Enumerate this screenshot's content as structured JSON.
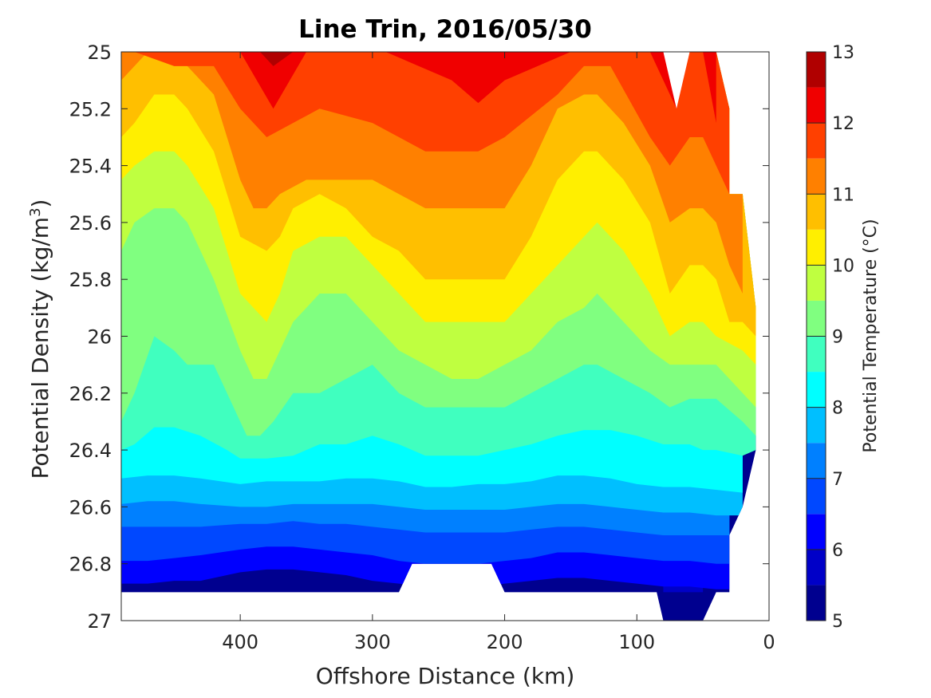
{
  "chart_data": {
    "type": "contour",
    "title": "Line Trin, 2016/05/30",
    "xlabel": "Offshore Distance (km)",
    "ylabel": "Potential Density (kg/m",
    "ylabel_sup": "3",
    "ylabel_close": ")",
    "colorbar_label": "Potential Temperature (°C)",
    "xlim": [
      490,
      0
    ],
    "ylim": [
      25,
      27
    ],
    "y_reversed": true,
    "xticks": [
      400,
      300,
      200,
      100,
      0
    ],
    "xtick_labels": [
      "400",
      "300",
      "200",
      "100",
      "0"
    ],
    "yticks": [
      25,
      25.2,
      25.4,
      25.6,
      25.8,
      26,
      26.2,
      26.4,
      26.6,
      26.8,
      27
    ],
    "ytick_labels": [
      "25",
      "25.2",
      "25.4",
      "25.6",
      "25.8",
      "26",
      "26.2",
      "26.4",
      "26.6",
      "26.8",
      "27"
    ],
    "clim": [
      5,
      13
    ],
    "contour_interval": 0.5,
    "cbar_ticks": [
      5,
      6,
      7,
      8,
      9,
      10,
      11,
      12,
      13
    ],
    "cbar_tick_labels": [
      "5",
      "6",
      "7",
      "8",
      "9",
      "10",
      "11",
      "12",
      "13"
    ],
    "level_colors": [
      "#00008f",
      "#0000c8",
      "#0000ff",
      "#0048ff",
      "#0080ff",
      "#00bfff",
      "#00ffff",
      "#40ffbf",
      "#80ff80",
      "#bfff40",
      "#ffef00",
      "#ffbf00",
      "#ff8000",
      "#ff4000",
      "#f00000",
      "#b00000"
    ],
    "isotherms": [
      {
        "level": 12.5,
        "x": [
          385,
          375,
          360
        ],
        "y": [
          25.0,
          25.05,
          25.0
        ]
      },
      {
        "level": 12.0,
        "x": [
          400,
          375,
          350,
          290,
          240,
          220,
          200,
          150,
          120,
          100,
          90,
          80,
          70,
          60,
          50,
          40
        ],
        "y": [
          25.0,
          25.2,
          25.0,
          25.0,
          25.1,
          25.18,
          25.1,
          25.0,
          25.0,
          25.0,
          25.0,
          25.1,
          25.2,
          25.0,
          25.0,
          25.25
        ]
      },
      {
        "level": 11.5,
        "x": [
          480,
          450,
          420,
          400,
          380,
          360,
          340,
          300,
          260,
          240,
          220,
          200,
          160,
          140,
          120,
          90,
          75,
          60,
          50,
          30
        ],
        "y": [
          25.0,
          25.05,
          25.05,
          25.2,
          25.3,
          25.25,
          25.2,
          25.25,
          25.35,
          25.35,
          25.35,
          25.3,
          25.15,
          25.05,
          25.05,
          25.3,
          25.4,
          25.3,
          25.3,
          25.5
        ]
      },
      {
        "level": 11.0,
        "x": [
          490,
          470,
          460,
          440,
          420,
          400,
          390,
          380,
          370,
          350,
          320,
          300,
          280,
          260,
          240,
          220,
          200,
          180,
          160,
          140,
          130,
          110,
          90,
          75,
          60,
          50,
          40,
          30,
          20
        ],
        "y": [
          25.1,
          25.0,
          25.0,
          25.05,
          25.15,
          25.45,
          25.55,
          25.55,
          25.5,
          25.45,
          25.45,
          25.45,
          25.5,
          25.55,
          25.55,
          25.55,
          25.55,
          25.4,
          25.2,
          25.15,
          25.15,
          25.25,
          25.4,
          25.6,
          25.55,
          25.55,
          25.6,
          25.75,
          25.85
        ]
      },
      {
        "level": 10.5,
        "x": [
          490,
          480,
          465,
          450,
          440,
          420,
          400,
          380,
          370,
          360,
          340,
          320,
          300,
          280,
          260,
          240,
          220,
          200,
          180,
          160,
          140,
          130,
          110,
          90,
          75,
          60,
          50,
          40,
          30,
          20,
          10
        ],
        "y": [
          25.3,
          25.25,
          25.15,
          25.15,
          25.2,
          25.35,
          25.65,
          25.7,
          25.65,
          25.55,
          25.5,
          25.55,
          25.65,
          25.7,
          25.8,
          25.8,
          25.8,
          25.8,
          25.65,
          25.45,
          25.35,
          25.35,
          25.45,
          25.6,
          25.85,
          25.75,
          25.75,
          25.8,
          25.95,
          25.95,
          26.0
        ]
      },
      {
        "level": 10.0,
        "x": [
          490,
          480,
          465,
          450,
          440,
          420,
          400,
          380,
          370,
          360,
          340,
          320,
          300,
          280,
          260,
          240,
          220,
          200,
          180,
          160,
          140,
          130,
          110,
          90,
          75,
          60,
          50,
          40,
          20,
          10
        ],
        "y": [
          25.45,
          25.4,
          25.35,
          25.35,
          25.4,
          25.55,
          25.85,
          25.95,
          25.85,
          25.7,
          25.65,
          25.65,
          25.75,
          25.85,
          25.95,
          25.95,
          25.95,
          25.95,
          25.85,
          25.75,
          25.65,
          25.6,
          25.7,
          25.85,
          26.0,
          25.95,
          25.95,
          26.0,
          26.05,
          26.1
        ]
      },
      {
        "level": 9.5,
        "x": [
          490,
          480,
          465,
          450,
          440,
          420,
          400,
          390,
          380,
          370,
          360,
          340,
          320,
          300,
          280,
          260,
          240,
          220,
          200,
          180,
          160,
          140,
          130,
          110,
          90,
          75,
          60,
          50,
          40,
          20,
          10
        ],
        "y": [
          25.7,
          25.6,
          25.55,
          25.55,
          25.6,
          25.8,
          26.05,
          26.15,
          26.15,
          26.05,
          25.95,
          25.85,
          25.85,
          25.95,
          26.05,
          26.1,
          26.15,
          26.15,
          26.1,
          26.05,
          25.95,
          25.9,
          25.85,
          25.95,
          26.05,
          26.1,
          26.1,
          26.1,
          26.1,
          26.2,
          26.25
        ]
      },
      {
        "level": 9.0,
        "x": [
          490,
          480,
          465,
          450,
          440,
          420,
          400,
          395,
          385,
          375,
          360,
          340,
          320,
          300,
          280,
          260,
          240,
          220,
          200,
          180,
          160,
          140,
          130,
          110,
          90,
          75,
          60,
          50,
          40,
          20,
          10
        ],
        "y": [
          26.3,
          26.2,
          26.0,
          26.05,
          26.1,
          26.1,
          26.3,
          26.35,
          26.35,
          26.3,
          26.2,
          26.2,
          26.15,
          26.1,
          26.2,
          26.25,
          26.25,
          26.25,
          26.25,
          26.2,
          26.15,
          26.1,
          26.1,
          26.15,
          26.2,
          26.25,
          26.22,
          26.22,
          26.22,
          26.3,
          26.35
        ]
      },
      {
        "level": 8.5,
        "x": [
          490,
          480,
          465,
          450,
          430,
          410,
          400,
          380,
          360,
          340,
          320,
          300,
          280,
          260,
          240,
          220,
          200,
          180,
          160,
          140,
          120,
          100,
          80,
          60,
          50,
          40,
          20,
          10
        ],
        "y": [
          26.4,
          26.38,
          26.32,
          26.32,
          26.35,
          26.4,
          26.43,
          26.43,
          26.42,
          26.38,
          26.38,
          26.35,
          26.38,
          26.42,
          26.42,
          26.42,
          26.4,
          26.38,
          26.35,
          26.33,
          26.33,
          26.35,
          26.38,
          26.38,
          26.4,
          26.4,
          26.42,
          26.4
        ]
      },
      {
        "level": 8.0,
        "x": [
          490,
          470,
          450,
          430,
          400,
          380,
          360,
          340,
          320,
          300,
          280,
          260,
          240,
          220,
          200,
          180,
          160,
          140,
          120,
          100,
          80,
          60,
          40,
          20
        ],
        "y": [
          26.5,
          26.49,
          26.49,
          26.5,
          26.52,
          26.51,
          26.51,
          26.51,
          26.5,
          26.5,
          26.51,
          26.53,
          26.53,
          26.52,
          26.52,
          26.51,
          26.49,
          26.49,
          26.5,
          26.52,
          26.53,
          26.53,
          26.54,
          26.55
        ]
      },
      {
        "level": 7.5,
        "x": [
          490,
          470,
          450,
          430,
          400,
          380,
          360,
          340,
          320,
          300,
          280,
          260,
          240,
          220,
          200,
          180,
          160,
          140,
          120,
          100,
          80,
          60,
          40,
          20
        ],
        "y": [
          26.59,
          26.58,
          26.58,
          26.59,
          26.6,
          26.6,
          26.59,
          26.59,
          26.59,
          26.59,
          26.6,
          26.61,
          26.61,
          26.61,
          26.61,
          26.6,
          26.59,
          26.59,
          26.6,
          26.61,
          26.62,
          26.62,
          26.63,
          26.63
        ]
      },
      {
        "level": 7.0,
        "x": [
          490,
          470,
          450,
          430,
          400,
          380,
          360,
          340,
          320,
          300,
          280,
          260,
          240,
          220,
          200,
          180,
          160,
          140,
          120,
          100,
          80,
          60,
          40,
          30
        ],
        "y": [
          26.67,
          26.67,
          26.67,
          26.67,
          26.66,
          26.66,
          26.65,
          26.66,
          26.66,
          26.67,
          26.68,
          26.69,
          26.69,
          26.69,
          26.69,
          26.68,
          26.67,
          26.67,
          26.68,
          26.69,
          26.7,
          26.7,
          26.7,
          26.7
        ]
      },
      {
        "level": 6.5,
        "x": [
          490,
          470,
          450,
          430,
          400,
          380,
          360,
          340,
          320,
          300,
          280,
          260,
          240,
          220,
          200,
          180,
          160,
          140,
          120,
          100,
          80,
          60,
          40,
          30
        ],
        "y": [
          26.79,
          26.79,
          26.78,
          26.77,
          26.75,
          26.74,
          26.74,
          26.75,
          26.76,
          26.77,
          26.79,
          26.8,
          26.8,
          26.8,
          26.79,
          26.78,
          26.76,
          26.76,
          26.77,
          26.78,
          26.79,
          26.79,
          26.8,
          26.8
        ]
      },
      {
        "level": 6.0,
        "x": [
          490,
          470,
          450,
          430,
          400,
          380,
          360,
          340,
          320,
          300,
          280,
          260,
          240,
          220,
          200,
          180,
          160,
          140,
          120,
          100,
          80,
          60,
          40,
          30
        ],
        "y": [
          26.87,
          26.87,
          26.86,
          26.86,
          26.83,
          26.82,
          26.82,
          26.83,
          26.84,
          26.86,
          26.87,
          26.88,
          26.88,
          26.88,
          26.87,
          26.86,
          26.85,
          26.85,
          26.86,
          26.87,
          26.88,
          26.88,
          26.89,
          26.89
        ]
      },
      {
        "level": 5.5,
        "x": [
          80,
          60,
          50
        ],
        "y": [
          26.9,
          26.9,
          26.9
        ]
      }
    ],
    "data_coverage": {
      "x": [
        490,
        410,
        350,
        280,
        270,
        210,
        200,
        100,
        85,
        80,
        50,
        40,
        30,
        30,
        20,
        10,
        10
      ],
      "y_bottom": [
        26.9,
        26.9,
        26.9,
        26.9,
        26.8,
        26.8,
        26.9,
        26.9,
        26.9,
        27.0,
        27.0,
        26.9,
        26.9,
        26.7,
        26.6,
        26.4,
        26.4
      ],
      "y_top": [
        25.0,
        25.0,
        25.0,
        25.0,
        25.0,
        25.0,
        25.0,
        25.0,
        25.0,
        25.0,
        25.0,
        25.0,
        25.2,
        25.5,
        25.5,
        25.9,
        25.9
      ],
      "top_gaps": [
        {
          "x": [
            90,
            80,
            70,
            60
          ],
          "y": [
            25.0,
            25.0,
            25.2,
            25.0
          ]
        },
        {
          "x": [
            40,
            35
          ],
          "y": [
            25.0,
            25.0
          ]
        }
      ]
    }
  }
}
